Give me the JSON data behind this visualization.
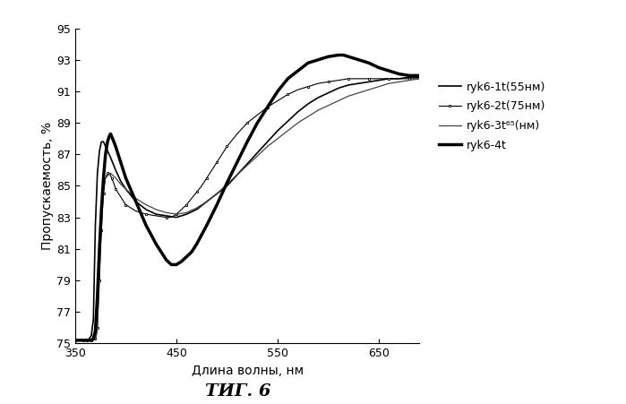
{
  "title": "ΤИГ. 6",
  "xlabel": "Длина волны, нм",
  "ylabel": "Пропускаемость, %",
  "xlim": [
    350,
    690
  ],
  "ylim": [
    75,
    95
  ],
  "yticks": [
    75,
    77,
    79,
    81,
    83,
    85,
    87,
    89,
    91,
    93,
    95
  ],
  "xticks": [
    350,
    450,
    550,
    650
  ],
  "background_color": "#ffffff",
  "curve1_x": [
    350,
    355,
    358,
    360,
    362,
    364,
    366,
    368,
    370,
    372,
    374,
    376,
    378,
    380,
    385,
    390,
    395,
    400,
    410,
    420,
    430,
    440,
    450,
    460,
    470,
    480,
    490,
    500,
    510,
    520,
    530,
    540,
    550,
    560,
    570,
    580,
    590,
    600,
    610,
    620,
    630,
    640,
    650,
    660,
    670,
    680,
    690
  ],
  "curve1_y": [
    75.2,
    75.2,
    75.2,
    75.2,
    75.2,
    75.3,
    75.5,
    76.5,
    82.5,
    85.8,
    87.2,
    87.8,
    87.8,
    87.5,
    86.8,
    86.0,
    85.3,
    84.8,
    84.0,
    83.5,
    83.2,
    83.1,
    83.0,
    83.2,
    83.5,
    84.0,
    84.5,
    85.0,
    85.7,
    86.4,
    87.1,
    87.8,
    88.5,
    89.1,
    89.7,
    90.2,
    90.6,
    90.9,
    91.2,
    91.4,
    91.5,
    91.6,
    91.7,
    91.8,
    91.8,
    91.9,
    91.9
  ],
  "curve2_x": [
    350,
    355,
    358,
    360,
    362,
    364,
    366,
    368,
    370,
    371,
    372,
    373,
    374,
    375,
    376,
    377,
    378,
    380,
    382,
    384,
    386,
    388,
    390,
    395,
    400,
    410,
    420,
    430,
    440,
    445,
    450,
    455,
    460,
    465,
    470,
    475,
    480,
    485,
    490,
    495,
    500,
    510,
    520,
    530,
    540,
    550,
    560,
    570,
    580,
    590,
    600,
    610,
    620,
    630,
    640,
    650,
    660,
    670,
    680,
    690
  ],
  "curve2_y": [
    75.2,
    75.2,
    75.2,
    75.2,
    75.2,
    75.2,
    75.2,
    75.2,
    75.3,
    75.5,
    76.0,
    77.5,
    79.0,
    80.8,
    82.2,
    83.5,
    84.5,
    85.5,
    85.8,
    85.8,
    85.5,
    85.2,
    84.8,
    84.3,
    83.8,
    83.4,
    83.2,
    83.1,
    83.0,
    83.0,
    83.2,
    83.5,
    83.8,
    84.2,
    84.6,
    85.0,
    85.5,
    86.0,
    86.5,
    87.0,
    87.5,
    88.3,
    89.0,
    89.5,
    90.0,
    90.4,
    90.8,
    91.1,
    91.3,
    91.5,
    91.6,
    91.7,
    91.8,
    91.8,
    91.8,
    91.8,
    91.8,
    91.8,
    91.8,
    91.8
  ],
  "curve3_x": [
    350,
    355,
    358,
    360,
    362,
    364,
    366,
    368,
    370,
    372,
    374,
    376,
    378,
    380,
    385,
    390,
    395,
    400,
    410,
    420,
    430,
    440,
    450,
    460,
    470,
    480,
    490,
    500,
    510,
    520,
    530,
    540,
    550,
    560,
    570,
    580,
    590,
    600,
    610,
    620,
    630,
    640,
    650,
    660,
    670,
    680,
    690
  ],
  "curve3_y": [
    75.2,
    75.2,
    75.2,
    75.2,
    75.2,
    75.2,
    75.2,
    75.2,
    75.3,
    76.0,
    80.0,
    83.5,
    85.0,
    85.5,
    85.8,
    85.5,
    85.1,
    84.8,
    84.2,
    83.8,
    83.5,
    83.3,
    83.2,
    83.3,
    83.6,
    84.0,
    84.5,
    85.1,
    85.7,
    86.3,
    86.9,
    87.5,
    88.0,
    88.5,
    89.0,
    89.4,
    89.8,
    90.1,
    90.4,
    90.7,
    90.9,
    91.1,
    91.3,
    91.5,
    91.6,
    91.7,
    91.8
  ],
  "curve4_x": [
    350,
    355,
    358,
    360,
    362,
    364,
    366,
    368,
    370,
    372,
    374,
    376,
    378,
    380,
    382,
    384,
    385,
    387,
    390,
    395,
    400,
    410,
    420,
    430,
    440,
    445,
    450,
    455,
    460,
    465,
    470,
    480,
    490,
    500,
    510,
    520,
    530,
    540,
    550,
    560,
    570,
    580,
    590,
    600,
    610,
    615,
    620,
    630,
    640,
    650,
    660,
    670,
    680,
    690
  ],
  "curve4_y": [
    75.2,
    75.2,
    75.2,
    75.2,
    75.2,
    75.2,
    75.2,
    75.3,
    75.8,
    78.0,
    81.0,
    83.5,
    85.5,
    87.0,
    87.8,
    88.2,
    88.3,
    88.0,
    87.5,
    86.5,
    85.5,
    84.0,
    82.5,
    81.3,
    80.3,
    80.0,
    80.0,
    80.2,
    80.5,
    80.8,
    81.3,
    82.5,
    83.8,
    85.2,
    86.5,
    87.8,
    89.0,
    90.0,
    91.0,
    91.8,
    92.3,
    92.8,
    93.0,
    93.2,
    93.3,
    93.3,
    93.2,
    93.0,
    92.8,
    92.5,
    92.3,
    92.1,
    92.0,
    92.0
  ]
}
